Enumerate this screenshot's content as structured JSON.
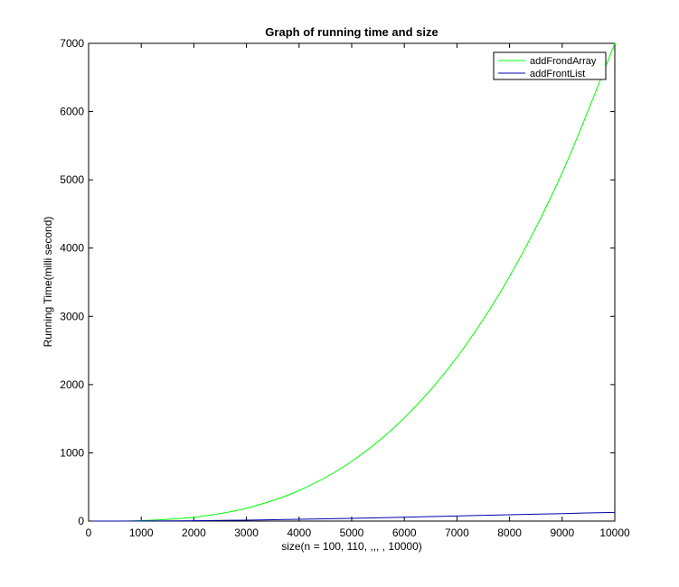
{
  "chart_data": {
    "type": "line",
    "title": "Graph of running time and size",
    "xlabel": "size(n = 100, 110, ,,, , 10000)",
    "ylabel": "Running Time(milli second)",
    "xlim": [
      0,
      10000
    ],
    "ylim": [
      0,
      7000
    ],
    "xticks": [
      0,
      1000,
      2000,
      3000,
      4000,
      5000,
      6000,
      7000,
      8000,
      9000,
      10000
    ],
    "yticks": [
      0,
      1000,
      2000,
      3000,
      4000,
      5000,
      6000,
      7000
    ],
    "grid": false,
    "legend_position": "top-right",
    "x": [
      100,
      1000,
      2000,
      3000,
      4000,
      5000,
      6000,
      7000,
      8000,
      9000,
      10000
    ],
    "series": [
      {
        "name": "addFrondArray",
        "color": "#00ff00",
        "values": [
          0,
          7,
          56,
          189,
          448,
          875,
          1512,
          2401,
          3584,
          5103,
          7000
        ]
      },
      {
        "name": "addFrontList",
        "color": "#0000aa",
        "values": [
          0,
          1,
          5,
          14,
          26,
          40,
          57,
          75,
          92,
          110,
          128
        ]
      }
    ]
  }
}
